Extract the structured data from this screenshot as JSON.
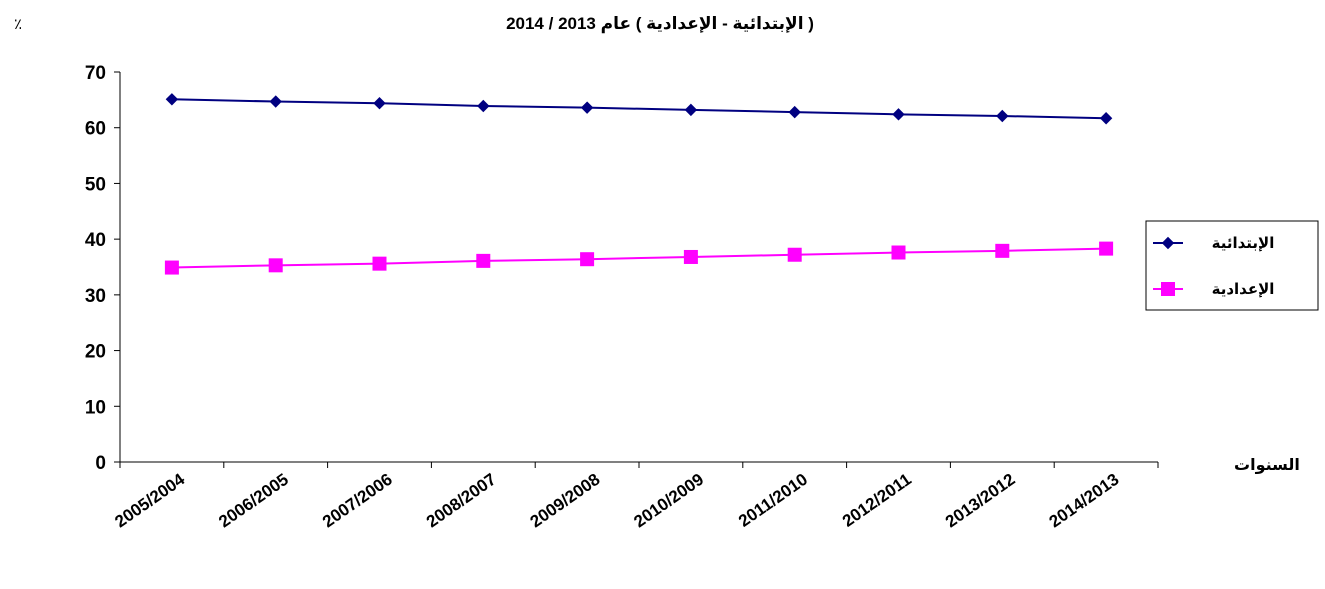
{
  "chart_data": {
    "type": "line",
    "title_line_1": "",
    "title_line_2": "( الإبتدائية - الإعدادية ) عام 2013 / 2014",
    "unit_label": "٪",
    "xlabel": "السنوات",
    "ylabel": "",
    "ylim": [
      0,
      70
    ],
    "yticks": [
      "0",
      "10",
      "20",
      "30",
      "40",
      "50",
      "60",
      "70"
    ],
    "categories": [
      "2005/2004",
      "2006/2005",
      "2007/2006",
      "2008/2007",
      "2009/2008",
      "2010/2009",
      "2011/2010",
      "2012/2011",
      "2013/2012",
      "2014/2013"
    ],
    "grid": false,
    "legend_position": "right",
    "series": [
      {
        "name": "الإبتدائية",
        "color": "#000080",
        "marker": "diamond",
        "values": [
          65.1,
          64.7,
          64.4,
          63.9,
          63.6,
          63.2,
          62.8,
          62.4,
          62.1,
          61.7
        ]
      },
      {
        "name": "الإعدادية",
        "color": "#ff00ff",
        "marker": "square",
        "values": [
          34.9,
          35.3,
          35.6,
          36.1,
          36.4,
          36.8,
          37.2,
          37.6,
          37.9,
          38.3
        ]
      }
    ]
  }
}
